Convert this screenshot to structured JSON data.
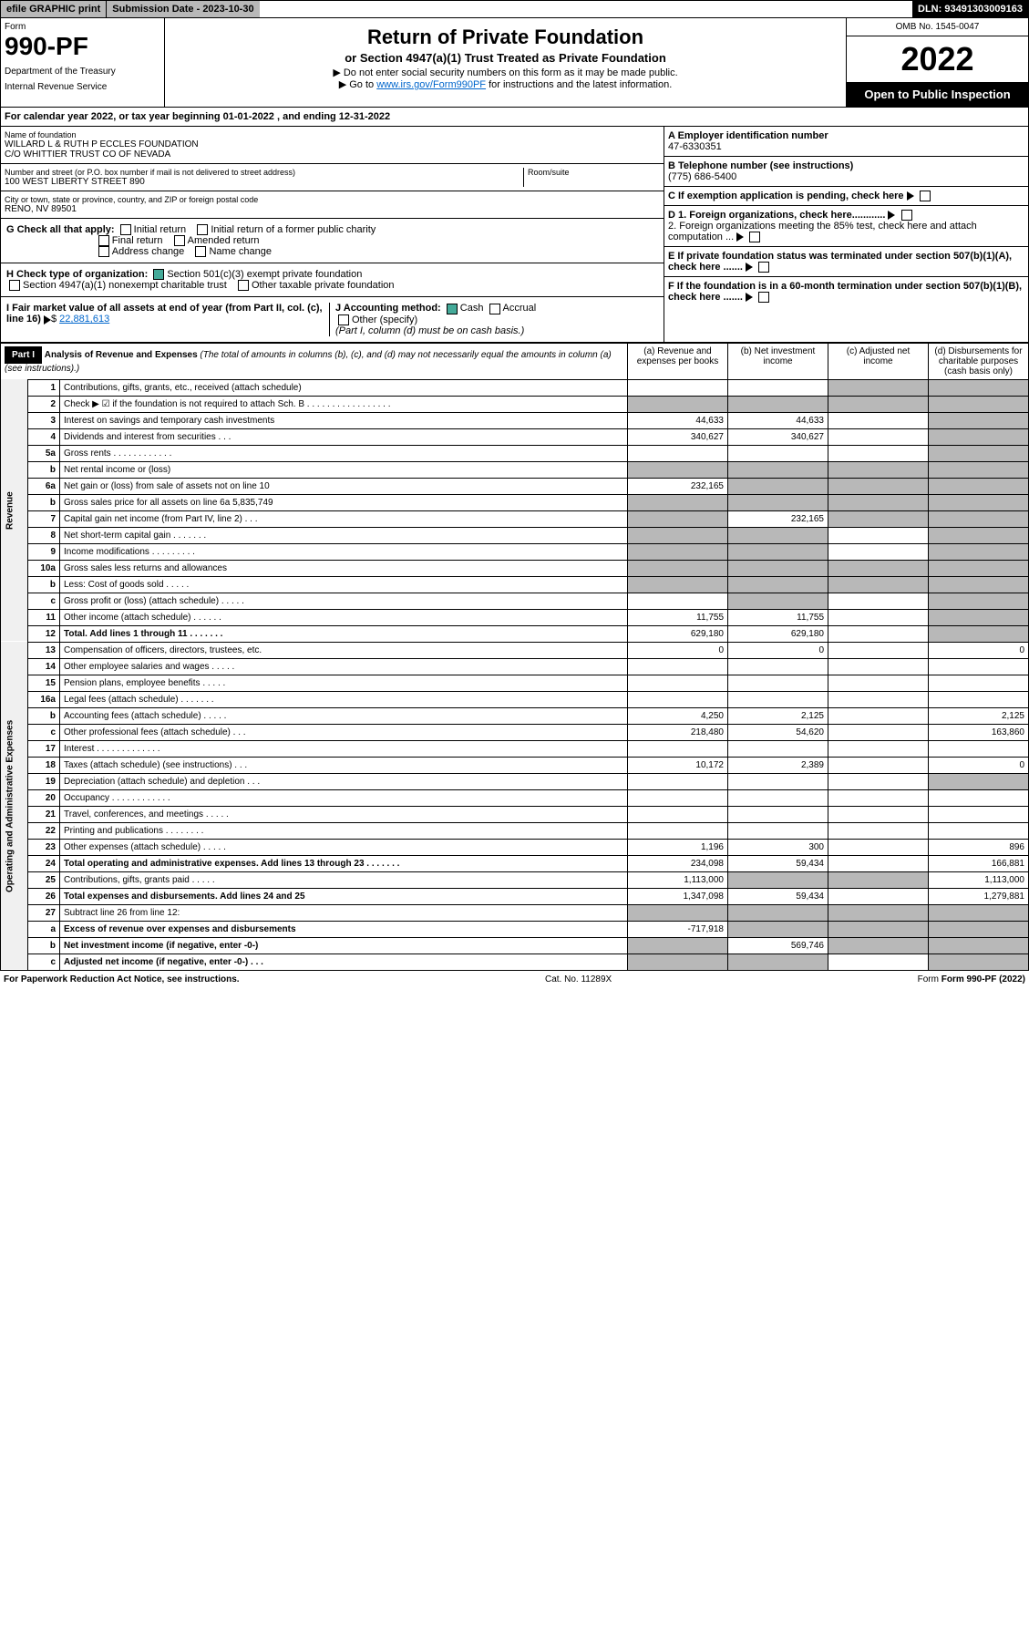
{
  "topbar": {
    "efile": "efile GRAPHIC print",
    "submission": "Submission Date - 2023-10-30",
    "dln": "DLN: 93491303009163"
  },
  "header": {
    "form_label": "Form",
    "form_number": "990-PF",
    "dept": "Department of the Treasury",
    "irs": "Internal Revenue Service",
    "title": "Return of Private Foundation",
    "subtitle": "or Section 4947(a)(1) Trust Treated as Private Foundation",
    "note1": "▶ Do not enter social security numbers on this form as it may be made public.",
    "note2_pre": "▶ Go to ",
    "note2_link": "www.irs.gov/Form990PF",
    "note2_post": " for instructions and the latest information.",
    "omb": "OMB No. 1545-0047",
    "year": "2022",
    "open_public": "Open to Public Inspection"
  },
  "cal_year": "For calendar year 2022, or tax year beginning 01-01-2022        , and ending 12-31-2022",
  "foundation": {
    "name_label": "Name of foundation",
    "name1": "WILLARD L & RUTH P ECCLES FOUNDATION",
    "name2": "C/O WHITTIER TRUST CO OF NEVADA",
    "addr_label": "Number and street (or P.O. box number if mail is not delivered to street address)",
    "addr": "100 WEST LIBERTY STREET 890",
    "room_label": "Room/suite",
    "city_label": "City or town, state or province, country, and ZIP or foreign postal code",
    "city": "RENO, NV  89501",
    "ein_label": "A Employer identification number",
    "ein": "47-6330351",
    "phone_label": "B Telephone number (see instructions)",
    "phone": "(775) 686-5400",
    "c_label": "C If exemption application is pending, check here",
    "d1_label": "D 1. Foreign organizations, check here............",
    "d2_label": "2. Foreign organizations meeting the 85% test, check here and attach computation ...",
    "e_label": "E  If private foundation status was terminated under section 507(b)(1)(A), check here .......",
    "f_label": "F  If the foundation is in a 60-month termination under section 507(b)(1)(B), check here .......",
    "g_label": "G Check all that apply:",
    "g_initial": "Initial return",
    "g_initial_former": "Initial return of a former public charity",
    "g_final": "Final return",
    "g_amended": "Amended return",
    "g_address": "Address change",
    "g_name": "Name change",
    "h_label": "H Check type of organization:",
    "h_501c3": "Section 501(c)(3) exempt private foundation",
    "h_4947": "Section 4947(a)(1) nonexempt charitable trust",
    "h_other": "Other taxable private foundation",
    "i_label": "I Fair market value of all assets at end of year (from Part II, col. (c), line 16)",
    "i_val": "22,881,613",
    "j_label": "J Accounting method:",
    "j_cash": "Cash",
    "j_accrual": "Accrual",
    "j_other": "Other (specify)",
    "j_note": "(Part I, column (d) must be on cash basis.)"
  },
  "part1": {
    "label": "Part I",
    "title": "Analysis of Revenue and Expenses",
    "desc": "(The total of amounts in columns (b), (c), and (d) may not necessarily equal the amounts in column (a) (see instructions).)",
    "col_a": "(a)  Revenue and expenses per books",
    "col_b": "(b)  Net investment income",
    "col_c": "(c)  Adjusted net income",
    "col_d": "(d)  Disbursements for charitable purposes (cash basis only)",
    "side_rev": "Revenue",
    "side_exp": "Operating and Administrative Expenses"
  },
  "rows": [
    {
      "n": "1",
      "desc": "Contributions, gifts, grants, etc., received (attach schedule)",
      "a": "",
      "b": "",
      "c": "",
      "d": "",
      "grey_c": true,
      "grey_d": true
    },
    {
      "n": "2",
      "desc": "Check ▶ ☑ if the foundation is not required to attach Sch. B  . . . . . . . . . . . . . . . . .",
      "a": "",
      "b": "",
      "c": "",
      "d": "",
      "grey_a": true,
      "grey_b": true,
      "grey_c": true,
      "grey_d": true
    },
    {
      "n": "3",
      "desc": "Interest on savings and temporary cash investments",
      "a": "44,633",
      "b": "44,633",
      "c": "",
      "d": "",
      "grey_d": true
    },
    {
      "n": "4",
      "desc": "Dividends and interest from securities  . . .",
      "a": "340,627",
      "b": "340,627",
      "c": "",
      "d": "",
      "grey_d": true
    },
    {
      "n": "5a",
      "desc": "Gross rents  . . . . . . . . . . . .",
      "a": "",
      "b": "",
      "c": "",
      "d": "",
      "grey_d": true
    },
    {
      "n": "b",
      "desc": "Net rental income or (loss)",
      "a": "",
      "b": "",
      "c": "",
      "d": "",
      "grey_a": true,
      "grey_b": true,
      "grey_c": true,
      "grey_d": true
    },
    {
      "n": "6a",
      "desc": "Net gain or (loss) from sale of assets not on line 10",
      "a": "232,165",
      "b": "",
      "c": "",
      "d": "",
      "grey_b": true,
      "grey_c": true,
      "grey_d": true
    },
    {
      "n": "b",
      "desc": "Gross sales price for all assets on line 6a             5,835,749",
      "a": "",
      "b": "",
      "c": "",
      "d": "",
      "grey_a": true,
      "grey_b": true,
      "grey_c": true,
      "grey_d": true
    },
    {
      "n": "7",
      "desc": "Capital gain net income (from Part IV, line 2)  . . .",
      "a": "",
      "b": "232,165",
      "c": "",
      "d": "",
      "grey_a": true,
      "grey_c": true,
      "grey_d": true
    },
    {
      "n": "8",
      "desc": "Net short-term capital gain  . . . . . . .",
      "a": "",
      "b": "",
      "c": "",
      "d": "",
      "grey_a": true,
      "grey_b": true,
      "grey_d": true
    },
    {
      "n": "9",
      "desc": "Income modifications  . . . . . . . . .",
      "a": "",
      "b": "",
      "c": "",
      "d": "",
      "grey_a": true,
      "grey_b": true,
      "grey_d": true
    },
    {
      "n": "10a",
      "desc": "Gross sales less returns and allowances",
      "a": "",
      "b": "",
      "c": "",
      "d": "",
      "grey_a": true,
      "grey_b": true,
      "grey_c": true,
      "grey_d": true
    },
    {
      "n": "b",
      "desc": "Less: Cost of goods sold  . . . . .",
      "a": "",
      "b": "",
      "c": "",
      "d": "",
      "grey_a": true,
      "grey_b": true,
      "grey_c": true,
      "grey_d": true
    },
    {
      "n": "c",
      "desc": "Gross profit or (loss) (attach schedule)  . . . . .",
      "a": "",
      "b": "",
      "c": "",
      "d": "",
      "grey_b": true,
      "grey_d": true
    },
    {
      "n": "11",
      "desc": "Other income (attach schedule)  . . . . . .",
      "a": "11,755",
      "b": "11,755",
      "c": "",
      "d": "",
      "grey_d": true
    },
    {
      "n": "12",
      "desc": "Total. Add lines 1 through 11  . . . . . . .",
      "a": "629,180",
      "b": "629,180",
      "c": "",
      "d": "",
      "bold": true,
      "grey_d": true
    },
    {
      "n": "13",
      "desc": "Compensation of officers, directors, trustees, etc.",
      "a": "0",
      "b": "0",
      "c": "",
      "d": "0"
    },
    {
      "n": "14",
      "desc": "Other employee salaries and wages  . . . . .",
      "a": "",
      "b": "",
      "c": "",
      "d": ""
    },
    {
      "n": "15",
      "desc": "Pension plans, employee benefits  . . . . .",
      "a": "",
      "b": "",
      "c": "",
      "d": ""
    },
    {
      "n": "16a",
      "desc": "Legal fees (attach schedule)  . . . . . . .",
      "a": "",
      "b": "",
      "c": "",
      "d": ""
    },
    {
      "n": "b",
      "desc": "Accounting fees (attach schedule)  . . . . .",
      "a": "4,250",
      "b": "2,125",
      "c": "",
      "d": "2,125"
    },
    {
      "n": "c",
      "desc": "Other professional fees (attach schedule)  . . .",
      "a": "218,480",
      "b": "54,620",
      "c": "",
      "d": "163,860"
    },
    {
      "n": "17",
      "desc": "Interest  . . . . . . . . . . . . .",
      "a": "",
      "b": "",
      "c": "",
      "d": ""
    },
    {
      "n": "18",
      "desc": "Taxes (attach schedule) (see instructions)  . . .",
      "a": "10,172",
      "b": "2,389",
      "c": "",
      "d": "0"
    },
    {
      "n": "19",
      "desc": "Depreciation (attach schedule) and depletion  . . .",
      "a": "",
      "b": "",
      "c": "",
      "d": "",
      "grey_d": true
    },
    {
      "n": "20",
      "desc": "Occupancy  . . . . . . . . . . . .",
      "a": "",
      "b": "",
      "c": "",
      "d": ""
    },
    {
      "n": "21",
      "desc": "Travel, conferences, and meetings  . . . . .",
      "a": "",
      "b": "",
      "c": "",
      "d": ""
    },
    {
      "n": "22",
      "desc": "Printing and publications  . . . . . . . .",
      "a": "",
      "b": "",
      "c": "",
      "d": ""
    },
    {
      "n": "23",
      "desc": "Other expenses (attach schedule)  . . . . .",
      "a": "1,196",
      "b": "300",
      "c": "",
      "d": "896"
    },
    {
      "n": "24",
      "desc": "Total operating and administrative expenses. Add lines 13 through 23  . . . . . . .",
      "a": "234,098",
      "b": "59,434",
      "c": "",
      "d": "166,881",
      "bold": true
    },
    {
      "n": "25",
      "desc": "Contributions, gifts, grants paid  . . . . .",
      "a": "1,113,000",
      "b": "",
      "c": "",
      "d": "1,113,000",
      "grey_b": true,
      "grey_c": true
    },
    {
      "n": "26",
      "desc": "Total expenses and disbursements. Add lines 24 and 25",
      "a": "1,347,098",
      "b": "59,434",
      "c": "",
      "d": "1,279,881",
      "bold": true
    },
    {
      "n": "27",
      "desc": "Subtract line 26 from line 12:",
      "a": "",
      "b": "",
      "c": "",
      "d": "",
      "grey_a": true,
      "grey_b": true,
      "grey_c": true,
      "grey_d": true
    },
    {
      "n": "a",
      "desc": "Excess of revenue over expenses and disbursements",
      "a": "-717,918",
      "b": "",
      "c": "",
      "d": "",
      "bold": true,
      "grey_b": true,
      "grey_c": true,
      "grey_d": true
    },
    {
      "n": "b",
      "desc": "Net investment income (if negative, enter -0-)",
      "a": "",
      "b": "569,746",
      "c": "",
      "d": "",
      "bold": true,
      "grey_a": true,
      "grey_c": true,
      "grey_d": true
    },
    {
      "n": "c",
      "desc": "Adjusted net income (if negative, enter -0-)  . . .",
      "a": "",
      "b": "",
      "c": "",
      "d": "",
      "bold": true,
      "grey_a": true,
      "grey_b": true,
      "grey_d": true
    }
  ],
  "footer": {
    "left": "For Paperwork Reduction Act Notice, see instructions.",
    "center": "Cat. No. 11289X",
    "right": "Form 990-PF (2022)"
  }
}
